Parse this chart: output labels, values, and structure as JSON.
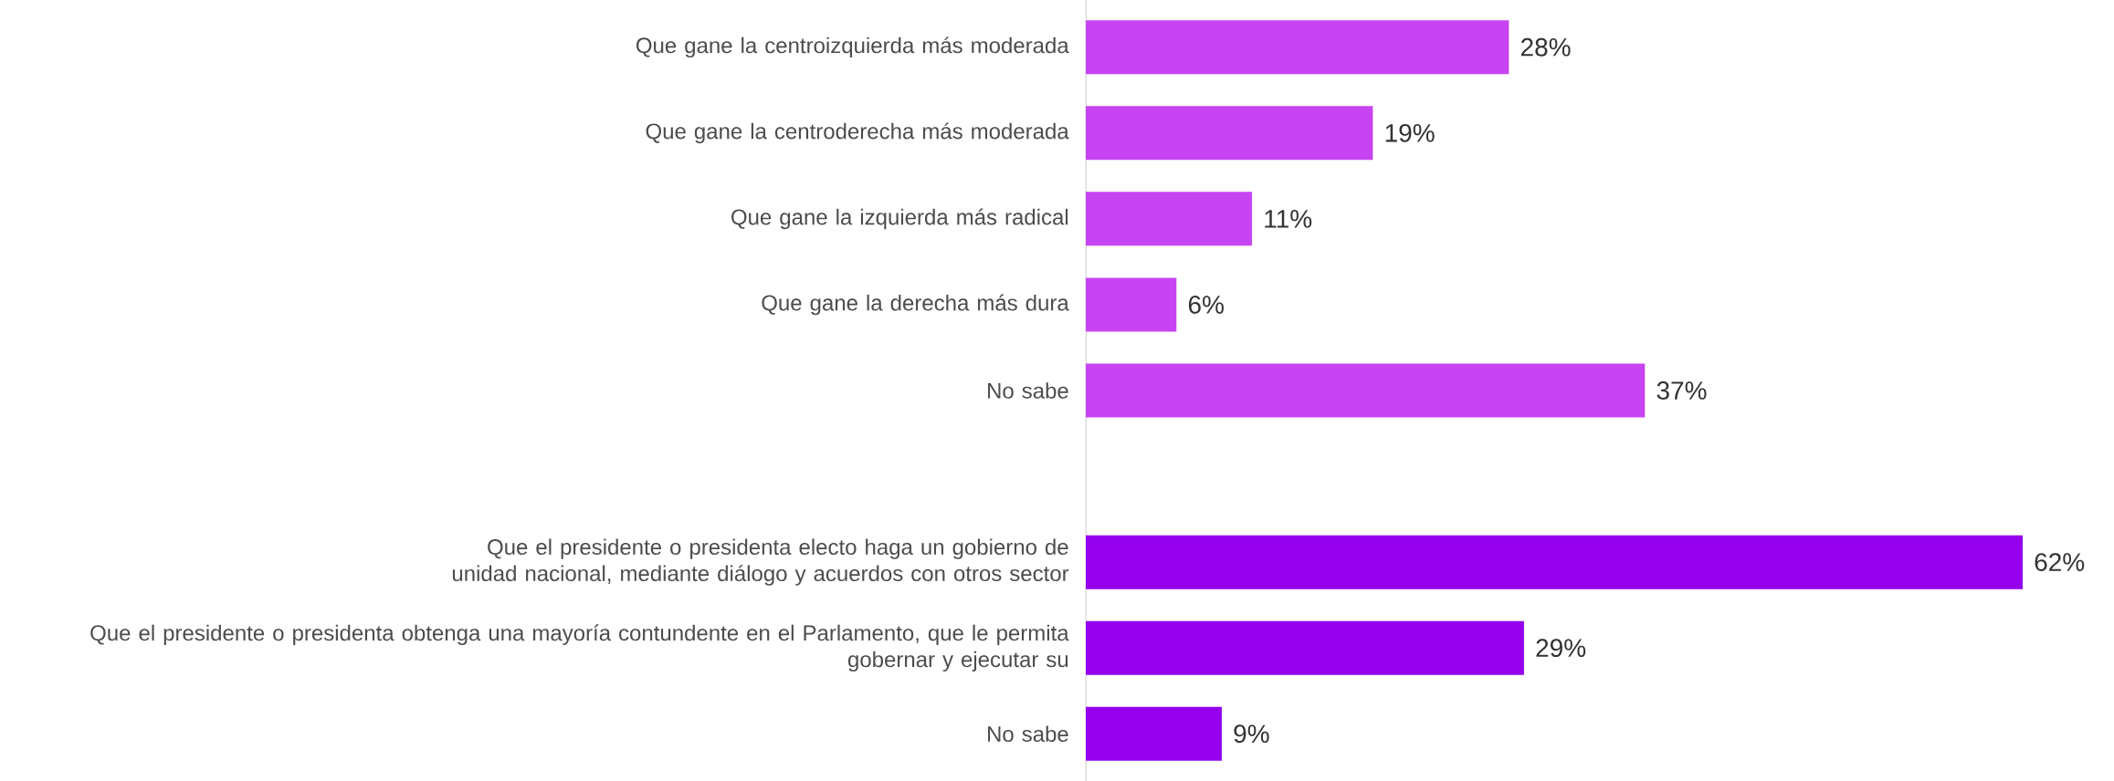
{
  "chart_data": {
    "type": "bar",
    "orientation": "horizontal",
    "categories": [
      "Que gane la centroizquierda más moderada",
      "Que gane la centroderecha más moderada",
      "Que gane la izquierda más radical",
      "Que gane la derecha más dura",
      "No sabe",
      null,
      "Que el presidente o presidenta electo haga un gobierno de unidad nacional, mediante diálogo y acuerdos con otros sector",
      "Que el presidente o presidenta obtenga una mayoría contundente en el Parlamento, que le permita gobernar y ejecutar su",
      "No sabe"
    ],
    "values": [
      28,
      19,
      11,
      6,
      37,
      null,
      62,
      29,
      9
    ],
    "value_labels": [
      "28%",
      "19%",
      "11%",
      "6%",
      "37%",
      null,
      "62%",
      "29%",
      "9%"
    ],
    "colors": [
      "#c744f2",
      "#c744f2",
      "#c744f2",
      "#c744f2",
      "#c744f2",
      null,
      "#9400ee",
      "#9400ee",
      "#9400ee"
    ]
  }
}
